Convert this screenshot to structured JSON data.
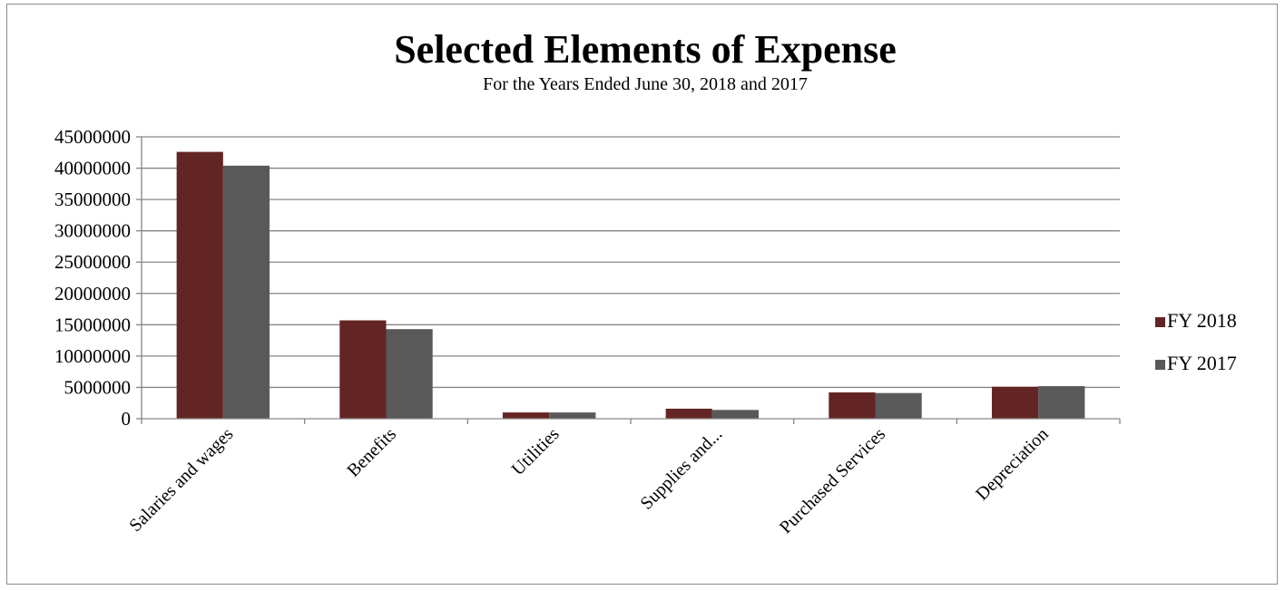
{
  "chart_data": {
    "type": "bar",
    "title": "Selected Elements of Expense",
    "subtitle": "For the Years Ended June 30, 2018  and 2017",
    "categories": [
      "Salaries and wages",
      "Benefits",
      "Utilities",
      "Supplies and...",
      "Purchased Services",
      "Depreciation"
    ],
    "series": [
      {
        "name": "FY 2018",
        "color": "#632523",
        "values": [
          42600000,
          15700000,
          1000000,
          1600000,
          4200000,
          5100000
        ]
      },
      {
        "name": "FY 2017",
        "color": "#595959",
        "values": [
          40400000,
          14300000,
          1000000,
          1400000,
          4100000,
          5200000
        ]
      }
    ],
    "ylim": [
      0,
      45000000
    ],
    "yticks": [
      "0",
      "5000000",
      "10000000",
      "15000000",
      "20000000",
      "25000000",
      "30000000",
      "35000000",
      "40000000",
      "45000000"
    ],
    "grid": true,
    "legend_position": "right",
    "xlabel": "",
    "ylabel": ""
  }
}
